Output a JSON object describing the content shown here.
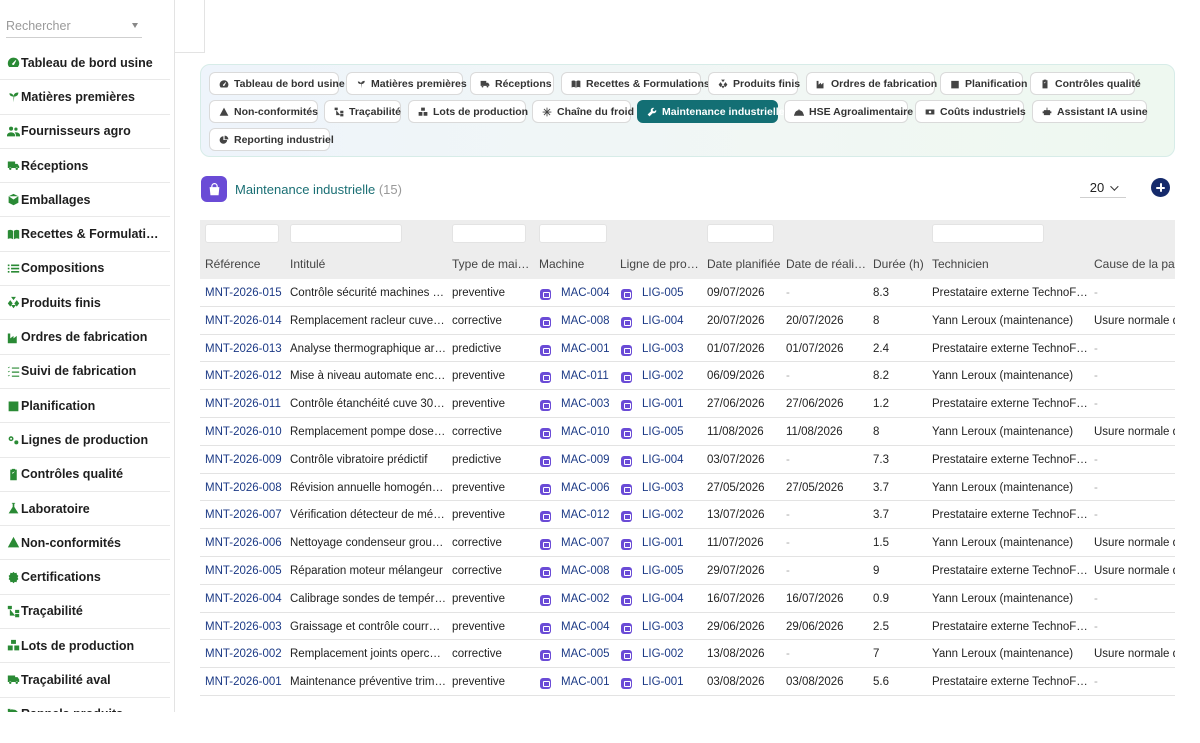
{
  "search": {
    "placeholder": "Rechercher"
  },
  "sidebar": {
    "items": [
      {
        "label": "Tableau de bord usine",
        "icon": "gauge-icon"
      },
      {
        "label": "Matières premières",
        "icon": "sprout-icon"
      },
      {
        "label": "Fournisseurs agro",
        "icon": "users-icon"
      },
      {
        "label": "Réceptions",
        "icon": "truck-icon"
      },
      {
        "label": "Emballages",
        "icon": "box-icon"
      },
      {
        "label": "Recettes & Formulati…",
        "icon": "book-icon"
      },
      {
        "label": "Compositions",
        "icon": "list-icon"
      },
      {
        "label": "Produits finis",
        "icon": "cubes-icon"
      },
      {
        "label": "Ordres de fabrication",
        "icon": "factory-icon"
      },
      {
        "label": "Suivi de fabrication",
        "icon": "checklist-icon"
      },
      {
        "label": "Planification",
        "icon": "calendar-icon"
      },
      {
        "label": "Lignes de production",
        "icon": "gears-icon"
      },
      {
        "label": "Contrôles qualité",
        "icon": "clipboard-icon"
      },
      {
        "label": "Laboratoire",
        "icon": "flask-icon"
      },
      {
        "label": "Non-conformités",
        "icon": "warning-icon"
      },
      {
        "label": "Certifications",
        "icon": "certificate-icon"
      },
      {
        "label": "Traçabilité",
        "icon": "sitemap-icon"
      },
      {
        "label": "Lots de production",
        "icon": "boxes-icon"
      },
      {
        "label": "Traçabilité aval",
        "icon": "delivery-icon"
      },
      {
        "label": "Rappels produits",
        "icon": "recall-icon"
      }
    ]
  },
  "tabs": [
    {
      "label": "Tableau de bord usine",
      "icon": "gauge-icon",
      "active": false
    },
    {
      "label": "Matières premières",
      "icon": "sprout-icon",
      "active": false
    },
    {
      "label": "Réceptions",
      "icon": "truck-icon",
      "active": false
    },
    {
      "label": "Recettes & Formulations",
      "icon": "book-icon",
      "active": false
    },
    {
      "label": "Produits finis",
      "icon": "cubes-icon",
      "active": false
    },
    {
      "label": "Ordres de fabrication",
      "icon": "factory-icon",
      "active": false
    },
    {
      "label": "Planification",
      "icon": "calendar-icon",
      "active": false
    },
    {
      "label": "Contrôles qualité",
      "icon": "clipboard-icon",
      "active": false
    },
    {
      "label": "Non-conformités",
      "icon": "warning-icon",
      "active": false
    },
    {
      "label": "Traçabilité",
      "icon": "sitemap-icon",
      "active": false
    },
    {
      "label": "Lots de production",
      "icon": "boxes-icon",
      "active": false
    },
    {
      "label": "Chaîne du froid",
      "icon": "snowflake-icon",
      "active": false
    },
    {
      "label": "Maintenance industrielle",
      "icon": "wrench-icon",
      "active": true
    },
    {
      "label": "HSE Agroalimentaire",
      "icon": "helmet-icon",
      "active": false
    },
    {
      "label": "Coûts industriels",
      "icon": "money-icon",
      "active": false
    },
    {
      "label": "Assistant IA usine",
      "icon": "robot-icon",
      "active": false
    },
    {
      "label": "Reporting industriel",
      "icon": "chart-pie-icon",
      "active": false
    }
  ],
  "module": {
    "title": "Maintenance industrielle",
    "count": "(15)",
    "page_size": "20",
    "icon": "bag-icon"
  },
  "table": {
    "columns": [
      "Référence",
      "Intitulé",
      "Type de mai…",
      "Machine",
      "Ligne de pro…",
      "Date planifiée",
      "Date de réali…",
      "Durée (h)",
      "Technicien",
      "Cause de la pan"
    ],
    "rows": [
      {
        "ref": "MNT-2026-015",
        "title": "Contrôle sécurité machines …",
        "type": "preventive",
        "machine": "MAC-004",
        "line": "LIG-005",
        "planned": "09/07/2026",
        "done": "-",
        "duration": "8.3",
        "tech": "Prestataire externe TechnoF…",
        "cause": "-"
      },
      {
        "ref": "MNT-2026-014",
        "title": "Remplacement racleur cuve…",
        "type": "corrective",
        "machine": "MAC-008",
        "line": "LIG-004",
        "planned": "20/07/2026",
        "done": "20/07/2026",
        "duration": "8",
        "tech": "Yann Leroux (maintenance)",
        "cause": "Usure normale d"
      },
      {
        "ref": "MNT-2026-013",
        "title": "Analyse thermographique ar…",
        "type": "predictive",
        "machine": "MAC-001",
        "line": "LIG-003",
        "planned": "01/07/2026",
        "done": "01/07/2026",
        "duration": "2.4",
        "tech": "Prestataire externe TechnoF…",
        "cause": "-"
      },
      {
        "ref": "MNT-2026-012",
        "title": "Mise à niveau automate enc…",
        "type": "preventive",
        "machine": "MAC-011",
        "line": "LIG-002",
        "planned": "06/09/2026",
        "done": "-",
        "duration": "8.2",
        "tech": "Yann Leroux (maintenance)",
        "cause": "-"
      },
      {
        "ref": "MNT-2026-011",
        "title": "Contrôle étanchéité cuve 30…",
        "type": "preventive",
        "machine": "MAC-003",
        "line": "LIG-001",
        "planned": "27/06/2026",
        "done": "27/06/2026",
        "duration": "1.2",
        "tech": "Prestataire externe TechnoF…",
        "cause": "-"
      },
      {
        "ref": "MNT-2026-010",
        "title": "Remplacement pompe dose…",
        "type": "corrective",
        "machine": "MAC-010",
        "line": "LIG-005",
        "planned": "11/08/2026",
        "done": "11/08/2026",
        "duration": "8",
        "tech": "Yann Leroux (maintenance)",
        "cause": "Usure normale d"
      },
      {
        "ref": "MNT-2026-009",
        "title": "Contrôle vibratoire prédictif",
        "type": "predictive",
        "machine": "MAC-009",
        "line": "LIG-004",
        "planned": "03/07/2026",
        "done": "-",
        "duration": "7.3",
        "tech": "Prestataire externe TechnoF…",
        "cause": "-"
      },
      {
        "ref": "MNT-2026-008",
        "title": "Révision annuelle homogén…",
        "type": "preventive",
        "machine": "MAC-006",
        "line": "LIG-003",
        "planned": "27/05/2026",
        "done": "27/05/2026",
        "duration": "3.7",
        "tech": "Yann Leroux (maintenance)",
        "cause": "-"
      },
      {
        "ref": "MNT-2026-007",
        "title": "Vérification détecteur de mé…",
        "type": "preventive",
        "machine": "MAC-012",
        "line": "LIG-002",
        "planned": "13/07/2026",
        "done": "-",
        "duration": "3.7",
        "tech": "Prestataire externe TechnoF…",
        "cause": "-"
      },
      {
        "ref": "MNT-2026-006",
        "title": "Nettoyage condenseur grou…",
        "type": "corrective",
        "machine": "MAC-007",
        "line": "LIG-001",
        "planned": "11/07/2026",
        "done": "-",
        "duration": "1.5",
        "tech": "Yann Leroux (maintenance)",
        "cause": "Usure normale d"
      },
      {
        "ref": "MNT-2026-005",
        "title": "Réparation moteur mélangeur",
        "type": "corrective",
        "machine": "MAC-008",
        "line": "LIG-005",
        "planned": "29/07/2026",
        "done": "-",
        "duration": "9",
        "tech": "Prestataire externe TechnoF…",
        "cause": "Usure normale d"
      },
      {
        "ref": "MNT-2026-004",
        "title": "Calibrage sondes de tempér…",
        "type": "preventive",
        "machine": "MAC-002",
        "line": "LIG-004",
        "planned": "16/07/2026",
        "done": "16/07/2026",
        "duration": "0.9",
        "tech": "Yann Leroux (maintenance)",
        "cause": "-"
      },
      {
        "ref": "MNT-2026-003",
        "title": "Graissage et contrôle courr…",
        "type": "preventive",
        "machine": "MAC-004",
        "line": "LIG-003",
        "planned": "29/06/2026",
        "done": "29/06/2026",
        "duration": "2.5",
        "tech": "Prestataire externe TechnoF…",
        "cause": "-"
      },
      {
        "ref": "MNT-2026-002",
        "title": "Remplacement joints operc…",
        "type": "corrective",
        "machine": "MAC-005",
        "line": "LIG-002",
        "planned": "13/08/2026",
        "done": "-",
        "duration": "7",
        "tech": "Yann Leroux (maintenance)",
        "cause": "Usure normale d"
      },
      {
        "ref": "MNT-2026-001",
        "title": "Maintenance préventive trim…",
        "type": "preventive",
        "machine": "MAC-001",
        "line": "LIG-001",
        "planned": "03/08/2026",
        "done": "03/08/2026",
        "duration": "5.6",
        "tech": "Prestataire externe TechnoF…",
        "cause": "-"
      }
    ]
  },
  "colors": {
    "accent": "#136f74",
    "brand_icon": "#6a4bd6",
    "link": "#1c3a86",
    "sidebar_icon": "#2a8a35",
    "add_button": "#152a6b"
  }
}
